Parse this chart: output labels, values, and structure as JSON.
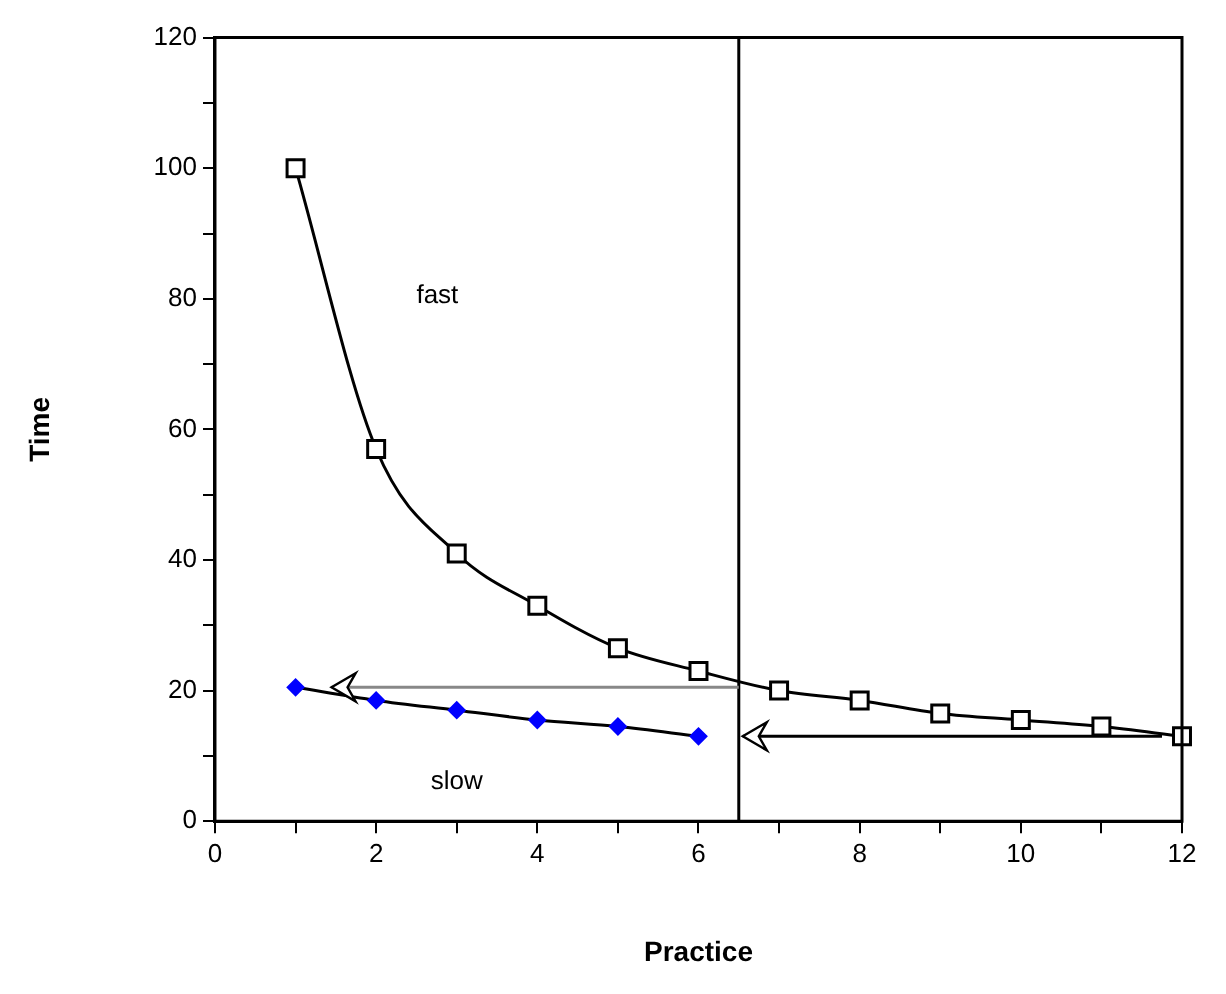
{
  "chart_data": {
    "type": "line",
    "xlabel": "Practice",
    "ylabel": "Time",
    "xlim": [
      0,
      12
    ],
    "xticks": [
      0,
      {
        "value": 1,
        "label": null
      },
      2,
      {
        "value": 3,
        "label": null
      },
      4,
      {
        "value": 5,
        "label": null
      },
      6,
      {
        "value": 7,
        "label": null
      },
      8,
      {
        "value": 9,
        "label": null
      },
      10,
      {
        "value": 11,
        "label": null
      },
      12
    ],
    "ylim": [
      0,
      120
    ],
    "yticks": [
      0,
      {
        "value": 10,
        "label": null
      },
      20,
      {
        "value": 30,
        "label": null
      },
      40,
      {
        "value": 50,
        "label": null
      },
      60,
      {
        "value": 70,
        "label": null
      },
      80,
      {
        "value": 90,
        "label": null
      },
      100,
      {
        "value": 110,
        "label": null
      },
      120
    ],
    "grid": false,
    "legend": false,
    "series": [
      {
        "color": "#000000",
        "marker": "square",
        "x": [
          1,
          2,
          3,
          4,
          5,
          6,
          7,
          8,
          9,
          10,
          11,
          12
        ],
        "values": [
          100,
          57,
          41,
          33,
          26.5,
          23,
          20,
          18.5,
          16.5,
          15.5,
          14.5,
          13
        ]
      },
      {
        "color": "#0000ff",
        "marker": "diamond",
        "x": [
          1,
          2,
          3,
          4,
          5,
          6
        ],
        "values": [
          20.5,
          18.5,
          17,
          15.5,
          14.5,
          13
        ]
      }
    ],
    "ref_lines": [
      {
        "axis": "x",
        "value": 6.5,
        "color": "#000000"
      }
    ],
    "annotations": [
      "fast",
      "slow"
    ]
  }
}
